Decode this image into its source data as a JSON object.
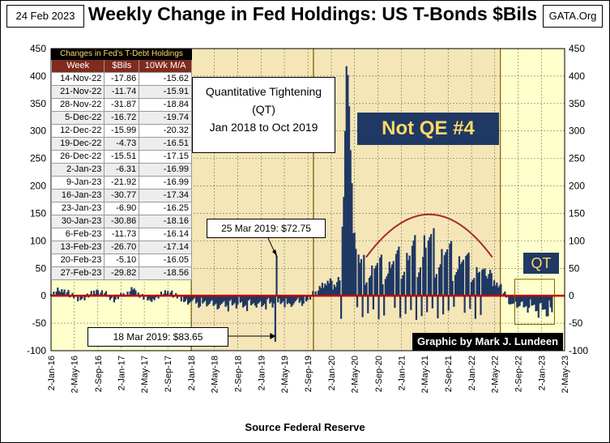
{
  "header": {
    "date": "24 Feb 2023",
    "title": "Weekly Change in Fed Holdings: US T-Bonds $Bils",
    "site": "GATA.Org"
  },
  "source": "Source Federal Reserve",
  "credit": "Graphic by Mark J. Lundeen",
  "annotations": {
    "qt_line1": "Quantitative Tightening",
    "qt_line2": "(QT)",
    "qt_line3": "Jan 2018 to Oct 2019",
    "not_qe": "Not QE #4",
    "qt_label": "QT",
    "peak_label": "25 Mar 2019:  $72.75",
    "trough_label": "18 Mar 2019:  $83.65"
  },
  "table": {
    "caption": "Changes in Fed's T-Debt Holdings",
    "headers": [
      "Week",
      "$Bils",
      "10Wk M/A"
    ],
    "rows": [
      [
        "14-Nov-22",
        "-17.86",
        "-15.62"
      ],
      [
        "21-Nov-22",
        "-11.74",
        "-15.91"
      ],
      [
        "28-Nov-22",
        "-31.87",
        "-18.84"
      ],
      [
        "5-Dec-22",
        "-16.72",
        "-19.74"
      ],
      [
        "12-Dec-22",
        "-15.99",
        "-20.32"
      ],
      [
        "19-Dec-22",
        "-4.73",
        "-16.51"
      ],
      [
        "26-Dec-22",
        "-15.51",
        "-17.15"
      ],
      [
        "2-Jan-23",
        "-6.31",
        "-16.99"
      ],
      [
        "9-Jan-23",
        "-21.92",
        "-16.99"
      ],
      [
        "16-Jan-23",
        "-30.77",
        "-17.34"
      ],
      [
        "23-Jan-23",
        "-6.90",
        "-16.25"
      ],
      [
        "30-Jan-23",
        "-30.86",
        "-18.16"
      ],
      [
        "6-Feb-23",
        "-11.73",
        "-16.14"
      ],
      [
        "13-Feb-23",
        "-26.70",
        "-17.14"
      ],
      [
        "20-Feb-23",
        "-5.10",
        "-16.05"
      ],
      [
        "27-Feb-23",
        "-29.82",
        "-18.56"
      ]
    ]
  },
  "colors": {
    "plot_bg": "#ffffcc",
    "shade_bg": "#f5e6b8",
    "bar": "#1f3864",
    "zero_line": "#c00000",
    "arc": "#a52a2a"
  },
  "chart_data": {
    "type": "bar",
    "title": "Weekly Change in Fed Holdings: US T-Bonds $Bils",
    "xlabel": "",
    "ylabel": "",
    "ylim": [
      -100,
      450
    ],
    "xlim": [
      "2016-01-02",
      "2023-05-02"
    ],
    "y_ticks": [
      -100,
      -50,
      0,
      50,
      100,
      150,
      200,
      250,
      300,
      350,
      400,
      450
    ],
    "x_ticks": [
      "2-Jan-16",
      "2-May-16",
      "2-Sep-16",
      "2-Jan-17",
      "2-May-17",
      "2-Sep-17",
      "2-Jan-18",
      "2-May-18",
      "2-Sep-18",
      "2-Jan-19",
      "2-May-19",
      "2-Sep-19",
      "2-Jan-20",
      "2-May-20",
      "2-Sep-20",
      "2-Jan-21",
      "2-May-21",
      "2-Sep-21",
      "2-Jan-22",
      "2-May-22",
      "2-Sep-22",
      "2-Jan-23",
      "2-May-23"
    ],
    "x_tick_dates": [
      "2016-01-02",
      "2016-05-02",
      "2016-09-02",
      "2017-01-02",
      "2017-05-02",
      "2017-09-02",
      "2018-01-02",
      "2018-05-02",
      "2018-09-02",
      "2019-01-02",
      "2019-05-02",
      "2019-09-02",
      "2020-01-02",
      "2020-05-02",
      "2020-09-02",
      "2021-01-02",
      "2021-05-02",
      "2021-09-02",
      "2022-01-02",
      "2022-05-02",
      "2022-09-02",
      "2023-01-02",
      "2023-05-02"
    ],
    "shaded_regions": [
      {
        "start": "2018-01-02",
        "end": "2019-10-01"
      },
      {
        "start": "2019-10-01",
        "end": "2022-06-01"
      }
    ],
    "qt_box": {
      "start": "2022-08-15",
      "end": "2023-03-10",
      "y_top": 30,
      "y_bottom": -52
    },
    "arc": {
      "start": "2020-07-01",
      "end": "2022-04-20",
      "y_start": 70,
      "y_peak": 148,
      "y_end": 70
    },
    "anchors": [
      {
        "date": "2016-01-04",
        "value": 3
      },
      {
        "date": "2016-03-01",
        "value": 12
      },
      {
        "date": "2016-06-01",
        "value": -8
      },
      {
        "date": "2016-09-01",
        "value": 10
      },
      {
        "date": "2016-12-01",
        "value": -7
      },
      {
        "date": "2017-03-01",
        "value": 11
      },
      {
        "date": "2017-06-01",
        "value": -9
      },
      {
        "date": "2017-09-01",
        "value": 9
      },
      {
        "date": "2017-12-01",
        "value": -10
      },
      {
        "date": "2018-03-01",
        "value": -14
      },
      {
        "date": "2018-06-01",
        "value": -17
      },
      {
        "date": "2018-09-01",
        "value": -16
      },
      {
        "date": "2018-12-01",
        "value": -18
      },
      {
        "date": "2019-03-11",
        "value": -14
      },
      {
        "date": "2019-03-18",
        "value": -83.65
      },
      {
        "date": "2019-03-25",
        "value": 72.75
      },
      {
        "date": "2019-04-01",
        "value": -12
      },
      {
        "date": "2019-06-01",
        "value": -15
      },
      {
        "date": "2019-09-01",
        "value": -8
      },
      {
        "date": "2019-10-15",
        "value": 8
      },
      {
        "date": "2019-12-01",
        "value": 22
      },
      {
        "date": "2020-02-15",
        "value": 28
      },
      {
        "date": "2020-03-09",
        "value": 180
      },
      {
        "date": "2020-03-16",
        "value": 300
      },
      {
        "date": "2020-03-23",
        "value": 418
      },
      {
        "date": "2020-03-30",
        "value": 402
      },
      {
        "date": "2020-04-06",
        "value": 345
      },
      {
        "date": "2020-04-13",
        "value": 265
      },
      {
        "date": "2020-04-20",
        "value": 205
      },
      {
        "date": "2020-05-04",
        "value": 115
      },
      {
        "date": "2020-06-01",
        "value": 60
      },
      {
        "date": "2020-08-01",
        "value": 55
      },
      {
        "date": "2020-11-01",
        "value": 62
      },
      {
        "date": "2021-02-01",
        "value": 78
      },
      {
        "date": "2021-05-01",
        "value": 110
      },
      {
        "date": "2021-08-01",
        "value": 85
      },
      {
        "date": "2021-11-01",
        "value": 72
      },
      {
        "date": "2022-02-01",
        "value": 52
      },
      {
        "date": "2022-05-01",
        "value": 28
      },
      {
        "date": "2022-08-01",
        "value": -15
      },
      {
        "date": "2022-11-01",
        "value": -22
      },
      {
        "date": "2023-02-27",
        "value": -30
      }
    ]
  }
}
